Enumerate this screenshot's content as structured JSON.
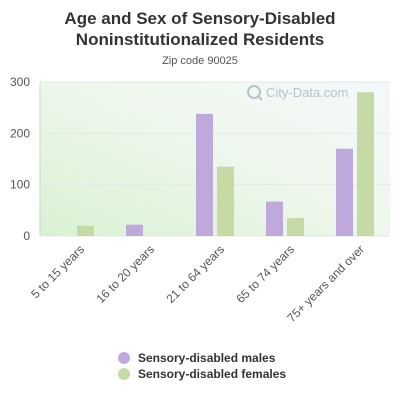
{
  "header": {
    "title_line1": "Age and Sex of Sensory-Disabled",
    "title_line2": "Noninstitutionalized Residents",
    "subtitle": "Zip code 90025"
  },
  "watermark": {
    "text": "City-Data.com",
    "icon": "magnifier-icon"
  },
  "colors": {
    "males": "#bfa8dc",
    "females": "#c6daa6",
    "tick_text": "#555555"
  },
  "chart_data": {
    "type": "bar",
    "title": "Age and Sex of Sensory-Disabled Noninstitutionalized Residents",
    "subtitle": "Zip code 90025",
    "categories": [
      "5 to 15 years",
      "16 to 20 years",
      "21 to 64 years",
      "65 to 74 years",
      "75+ years and over"
    ],
    "series": [
      {
        "name": "Sensory-disabled males",
        "values": [
          0,
          22,
          238,
          67,
          170
        ]
      },
      {
        "name": "Sensory-disabled females",
        "values": [
          20,
          0,
          135,
          35,
          280
        ]
      }
    ],
    "ylim": [
      0,
      300
    ],
    "yticks": [
      0,
      100,
      200,
      300
    ],
    "grid": true,
    "legend_position": "bottom"
  }
}
